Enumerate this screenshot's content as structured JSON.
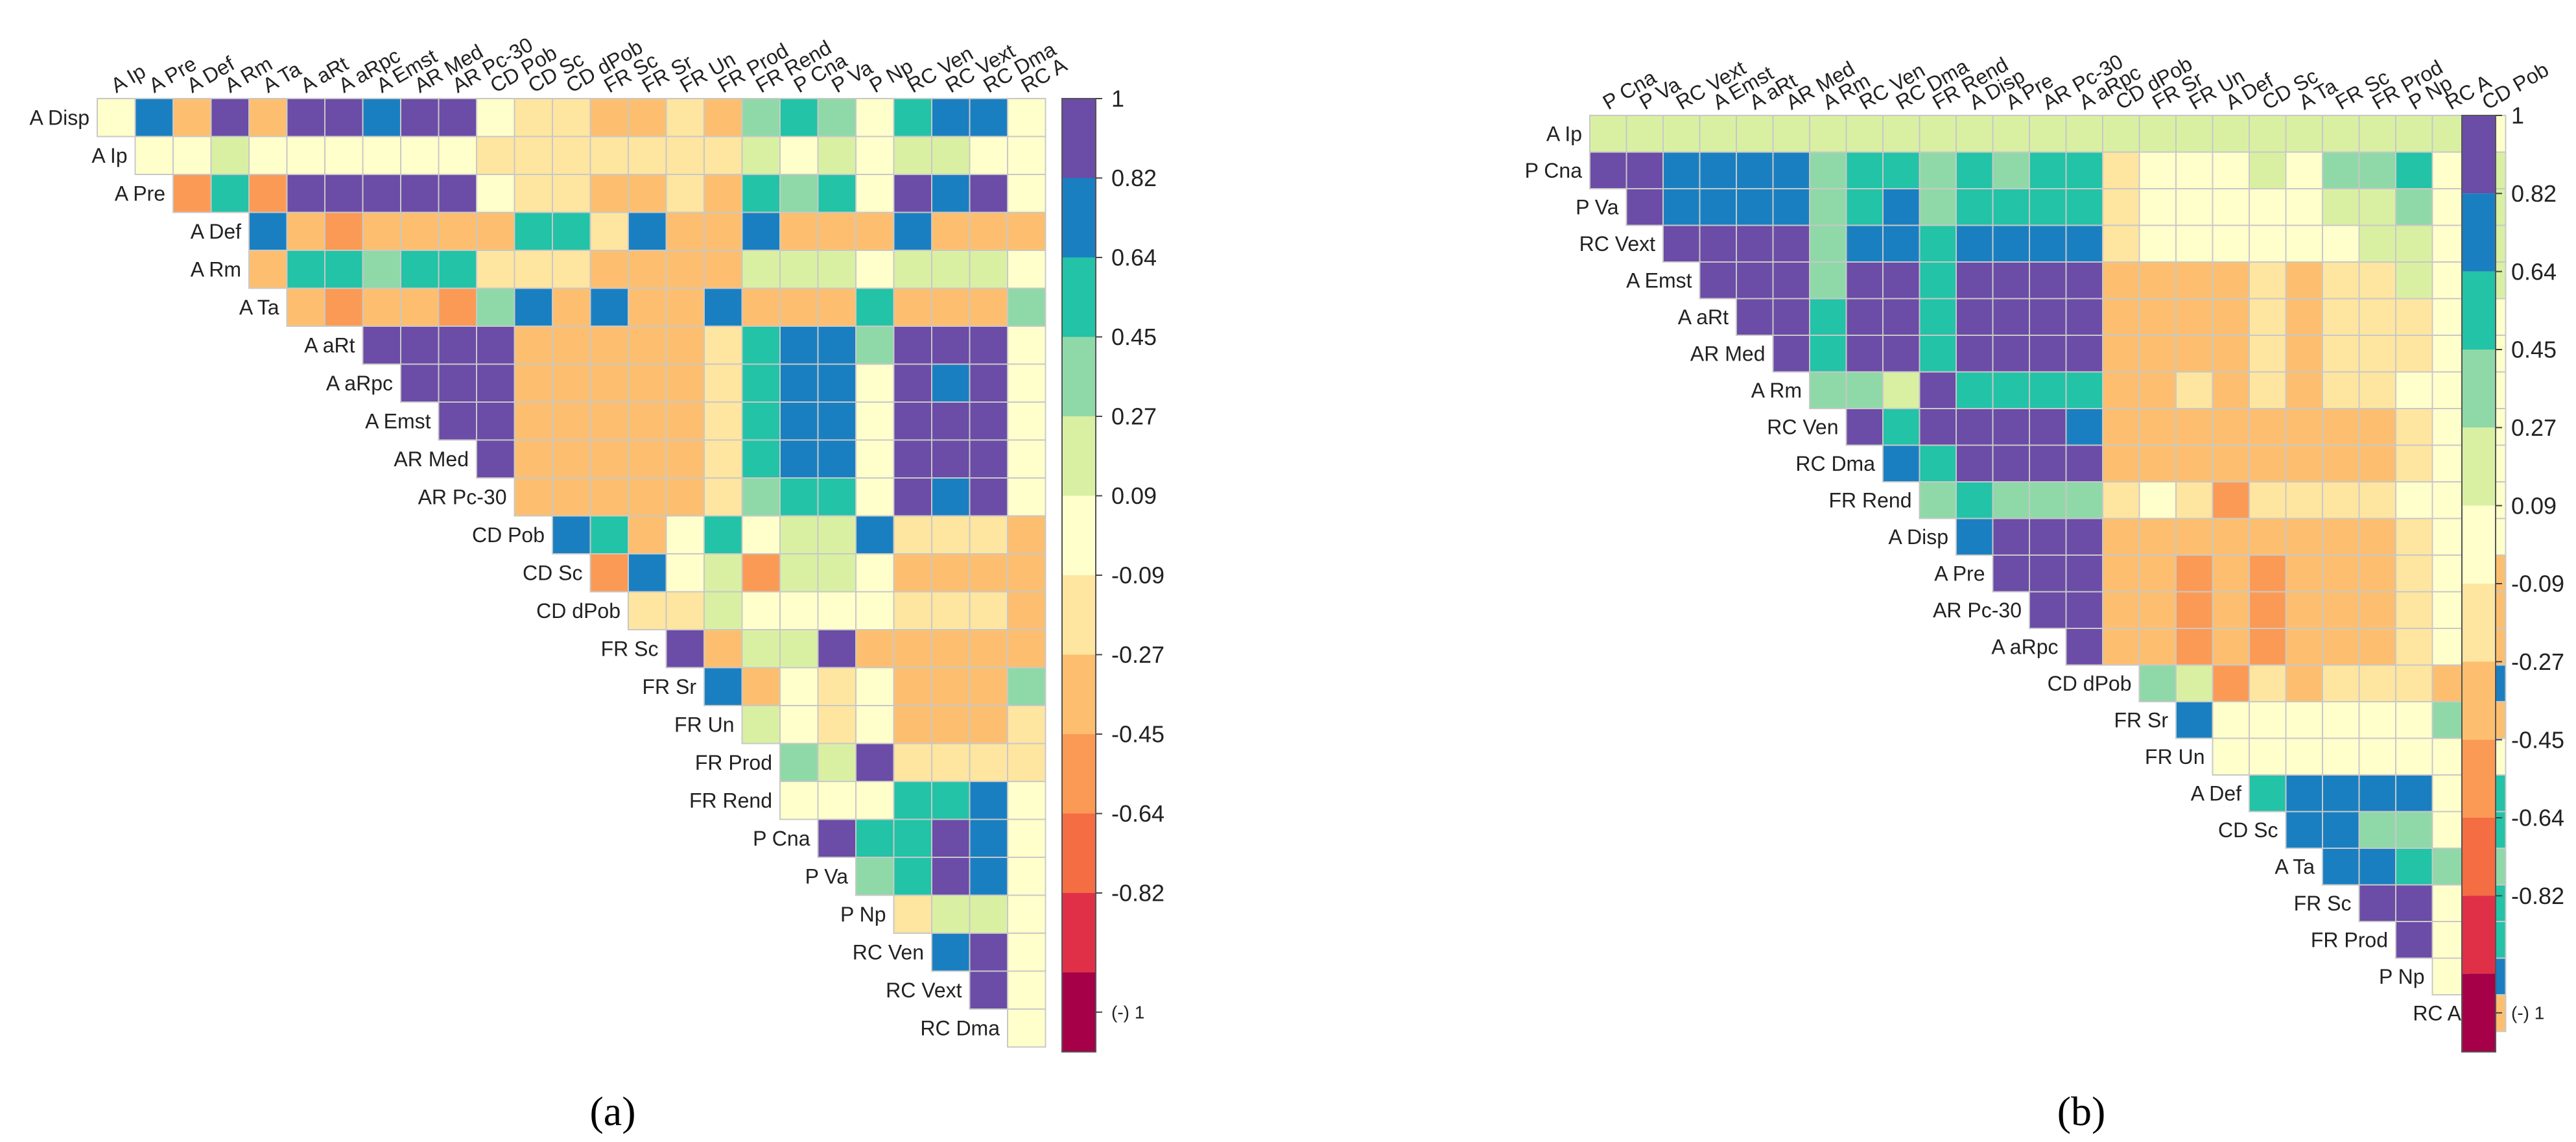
{
  "figure": {
    "caption_a": "(a)",
    "caption_b": "(b)"
  },
  "colorbar": {
    "ticks": [
      "1",
      "0.82",
      "0.64",
      "0.45",
      "0.27",
      "0.09",
      "-0.09",
      "-0.27",
      "-0.45",
      "-0.64",
      "-0.82",
      "(-) 1"
    ],
    "colors": [
      "#6b4ca6",
      "#1a7fc1",
      "#22c3a6",
      "#8fd9a8",
      "#d9f0a3",
      "#ffffcc",
      "#fee5a0",
      "#fdbf6f",
      "#fb9a55",
      "#f46d43",
      "#e03048",
      "#a50048"
    ]
  },
  "chart_data": [
    {
      "type": "heatmap",
      "panel": "a",
      "shape": "upper-triangular correlation matrix",
      "value_range": [
        -1,
        1
      ],
      "col_labels": [
        "A Ip",
        "A Pre",
        "A Def",
        "A Rm",
        "A Ta",
        "A aRt",
        "A aRpc",
        "A Emst",
        "AR Med",
        "AR Pc-30",
        "CD Pob",
        "CD Sc",
        "CD dPob",
        "FR Sc",
        "FR Sr",
        "FR Un",
        "FR Prod",
        "FR Rend",
        "P Cna",
        "P Va",
        "P Np",
        "RC Ven",
        "RC Vext",
        "RC Dma",
        "RC A"
      ],
      "row_labels": [
        "A Disp",
        "A Ip",
        "A Pre",
        "A Def",
        "A Rm",
        "A Ta",
        "A aRt",
        "A aRpc",
        "A Emst",
        "AR Med",
        "AR Pc-30",
        "CD Pob",
        "CD Sc",
        "CD dPob",
        "FR Sc",
        "FR Sr",
        "FR Un",
        "FR Prod",
        "FR Rend",
        "P Cna",
        "P Va",
        "P Np",
        "RC Ven",
        "RC Vext",
        "RC Dma"
      ],
      "rows": [
        [
          0.1,
          0.7,
          -0.3,
          0.9,
          -0.3,
          0.9,
          0.9,
          0.7,
          0.9,
          0.9,
          0.0,
          -0.1,
          -0.2,
          -0.3,
          -0.3,
          -0.2,
          -0.3,
          0.4,
          0.5,
          0.4,
          0.1,
          0.5,
          0.7,
          0.7,
          0.1
        ],
        [
          0.0,
          0.1,
          0.2,
          0.1,
          0.1,
          0.1,
          0.1,
          0.1,
          0.1,
          -0.1,
          -0.1,
          -0.1,
          -0.1,
          -0.1,
          -0.1,
          -0.1,
          0.2,
          0.1,
          0.2,
          0.1,
          0.2,
          0.2,
          0.1,
          0.0
        ],
        [
          -0.5,
          0.5,
          -0.5,
          0.9,
          0.9,
          0.9,
          0.9,
          0.9,
          0.0,
          -0.1,
          -0.1,
          -0.3,
          -0.3,
          -0.2,
          -0.3,
          0.5,
          0.4,
          0.5,
          0.1,
          0.9,
          0.7,
          0.9,
          0.0
        ],
        [
          0.7,
          -0.3,
          -0.5,
          -0.3,
          -0.3,
          -0.3,
          -0.3,
          0.5,
          0.5,
          -0.1,
          0.7,
          -0.3,
          -0.3,
          0.7,
          -0.3,
          -0.3,
          -0.3,
          0.7,
          -0.3,
          -0.3,
          -0.3
        ],
        [
          -0.3,
          0.5,
          0.5,
          0.4,
          0.5,
          0.5,
          -0.1,
          -0.1,
          -0.1,
          -0.3,
          -0.3,
          -0.3,
          -0.3,
          0.2,
          0.3,
          0.2,
          0.1,
          0.3,
          0.3,
          0.3,
          0.1
        ],
        [
          -0.3,
          -0.5,
          -0.3,
          -0.3,
          -0.5,
          0.4,
          0.7,
          -0.3,
          0.7,
          -0.3,
          -0.3,
          0.7,
          -0.3,
          -0.3,
          -0.3,
          0.5,
          -0.3,
          -0.3,
          -0.3,
          0.4
        ],
        [
          0.9,
          0.9,
          0.9,
          0.9,
          -0.3,
          -0.3,
          -0.3,
          -0.3,
          -0.3,
          -0.1,
          0.5,
          0.7,
          0.7,
          0.4,
          0.9,
          0.9,
          0.9,
          0.0
        ],
        [
          0.9,
          0.9,
          0.9,
          -0.3,
          -0.3,
          -0.3,
          -0.3,
          -0.3,
          -0.1,
          0.5,
          0.7,
          0.7,
          0.1,
          0.9,
          0.7,
          0.9,
          0.0
        ],
        [
          0.9,
          0.9,
          -0.3,
          -0.3,
          -0.3,
          -0.3,
          -0.3,
          -0.1,
          0.5,
          0.7,
          0.7,
          0.1,
          0.9,
          0.9,
          0.9,
          0.0
        ],
        [
          0.9,
          -0.3,
          -0.3,
          -0.3,
          -0.3,
          -0.3,
          -0.1,
          0.5,
          0.7,
          0.7,
          0.1,
          0.9,
          0.9,
          0.9,
          0.0
        ],
        [
          -0.3,
          -0.3,
          -0.3,
          -0.3,
          -0.3,
          -0.1,
          0.4,
          0.5,
          0.5,
          0.1,
          0.9,
          0.7,
          0.9,
          0.0
        ],
        [
          0.7,
          0.5,
          -0.3,
          0.1,
          0.5,
          0.1,
          0.2,
          0.2,
          0.7,
          -0.1,
          -0.1,
          -0.1,
          -0.3
        ],
        [
          -0.5,
          0.7,
          0.0,
          0.2,
          -0.5,
          0.2,
          0.2,
          0.1,
          -0.3,
          -0.3,
          -0.3,
          -0.3
        ],
        [
          -0.1,
          -0.1,
          0.2,
          0.1,
          0.1,
          0.1,
          0.1,
          -0.1,
          -0.1,
          -0.1,
          -0.3
        ],
        [
          0.9,
          -0.3,
          0.3,
          0.3,
          0.9,
          -0.3,
          -0.3,
          -0.3,
          -0.3,
          -0.3
        ],
        [
          0.7,
          -0.3,
          0.1,
          -0.1,
          0.1,
          -0.3,
          -0.3,
          -0.3,
          0.4
        ],
        [
          0.2,
          0.1,
          -0.1,
          0.1,
          -0.3,
          -0.3,
          -0.3,
          -0.1
        ],
        [
          0.4,
          0.2,
          0.9,
          -0.1,
          -0.1,
          -0.1,
          -0.1
        ],
        [
          0.1,
          0.1,
          0.1,
          0.5,
          0.5,
          0.7,
          0.1
        ],
        [
          0.9,
          0.5,
          0.5,
          0.9,
          0.7,
          0.1
        ],
        [
          0.4,
          0.5,
          0.9,
          0.7,
          0.1
        ],
        [
          -0.1,
          0.2,
          0.2,
          0.1
        ],
        [
          0.7,
          0.9,
          0.1
        ],
        [
          0.9,
          0.1
        ],
        [
          0.1
        ]
      ]
    },
    {
      "type": "heatmap",
      "panel": "b",
      "shape": "upper-triangular correlation matrix",
      "value_range": [
        -1,
        1
      ],
      "col_labels": [
        "P Cna",
        "P Va",
        "RC Vext",
        "A Emst",
        "A aRt",
        "AR Med",
        "A Rm",
        "RC Ven",
        "RC Dma",
        "FR Rend",
        "A Disp",
        "A Pre",
        "AR Pc-30",
        "A aRpc",
        "CD dPob",
        "FR Sr",
        "FR Un",
        "A Def",
        "CD Sc",
        "A Ta",
        "FR Sc",
        "FR Prod",
        "P Np",
        "RC A",
        "CD Pob"
      ],
      "row_labels": [
        "A Ip",
        "P Cna",
        "P Va",
        "RC Vext",
        "A Emst",
        "A aRt",
        "AR Med",
        "A Rm",
        "RC Ven",
        "RC Dma",
        "FR Rend",
        "A Disp",
        "A Pre",
        "AR Pc-30",
        "A aRpc",
        "CD dPob",
        "FR Sr",
        "FR Un",
        "A Def",
        "CD Sc",
        "A Ta",
        "FR Sc",
        "FR Prod",
        "P Np",
        "RC A"
      ],
      "rows": [
        [
          0.2,
          0.2,
          0.2,
          0.2,
          0.2,
          0.2,
          0.2,
          0.2,
          0.2,
          0.2,
          0.2,
          0.2,
          0.2,
          0.2,
          0.2,
          0.2,
          0.2,
          0.2,
          0.2,
          0.2,
          0.2,
          0.2,
          0.2,
          0.2,
          0.1
        ],
        [
          0.9,
          0.9,
          0.7,
          0.7,
          0.7,
          0.7,
          0.4,
          0.5,
          0.5,
          0.4,
          0.5,
          0.4,
          0.5,
          0.5,
          -0.1,
          0.1,
          0.1,
          0.1,
          0.2,
          0.1,
          0.4,
          0.4,
          0.5,
          0.1,
          0.2
        ],
        [
          0.9,
          0.7,
          0.7,
          0.7,
          0.7,
          0.4,
          0.5,
          0.7,
          0.4,
          0.5,
          0.5,
          0.5,
          0.5,
          -0.1,
          0.1,
          0.1,
          0.1,
          0.1,
          0.1,
          0.2,
          0.2,
          0.4,
          0.1,
          0.2
        ],
        [
          0.9,
          0.9,
          0.9,
          0.9,
          0.4,
          0.7,
          0.7,
          0.5,
          0.7,
          0.7,
          0.7,
          0.7,
          -0.1,
          0.1,
          0.1,
          0.1,
          0.1,
          0.1,
          0.1,
          0.2,
          0.2,
          0.1,
          0.2
        ],
        [
          0.9,
          0.9,
          0.9,
          0.4,
          0.9,
          0.9,
          0.5,
          0.9,
          0.9,
          0.9,
          0.9,
          -0.3,
          -0.3,
          -0.3,
          -0.3,
          -0.1,
          -0.3,
          -0.1,
          -0.1,
          0.2,
          0.1,
          0.2
        ],
        [
          0.9,
          0.9,
          0.5,
          0.9,
          0.9,
          0.5,
          0.9,
          0.9,
          0.9,
          0.9,
          -0.3,
          -0.3,
          -0.3,
          -0.3,
          -0.1,
          -0.3,
          -0.1,
          -0.1,
          -0.1,
          0.1,
          0.1
        ],
        [
          0.9,
          0.5,
          0.9,
          0.9,
          0.5,
          0.9,
          0.9,
          0.9,
          0.9,
          -0.3,
          -0.3,
          -0.3,
          -0.3,
          -0.1,
          -0.3,
          -0.1,
          -0.1,
          -0.1,
          0.1,
          0.1
        ],
        [
          0.4,
          0.4,
          0.2,
          0.9,
          0.5,
          0.5,
          0.5,
          0.5,
          -0.3,
          -0.3,
          -0.1,
          -0.3,
          -0.1,
          -0.3,
          -0.1,
          -0.1,
          0.1,
          0.1,
          0.1
        ],
        [
          0.9,
          0.5,
          0.9,
          0.9,
          0.9,
          0.9,
          0.7,
          -0.3,
          -0.3,
          -0.3,
          -0.3,
          -0.3,
          -0.3,
          -0.3,
          -0.3,
          -0.1,
          0.1,
          0.1
        ],
        [
          0.7,
          0.5,
          0.9,
          0.9,
          0.9,
          0.9,
          -0.3,
          -0.3,
          -0.3,
          -0.3,
          -0.3,
          -0.3,
          -0.3,
          -0.3,
          -0.1,
          0.1,
          0.1
        ],
        [
          0.4,
          0.5,
          0.4,
          0.4,
          0.4,
          -0.1,
          0.1,
          -0.1,
          -0.5,
          -0.1,
          -0.1,
          -0.1,
          -0.1,
          0.1,
          0.1,
          0.1
        ],
        [
          0.7,
          0.9,
          0.9,
          0.9,
          -0.3,
          -0.3,
          -0.3,
          -0.3,
          -0.3,
          -0.3,
          -0.3,
          -0.3,
          -0.1,
          0.1,
          0.1
        ],
        [
          0.9,
          0.9,
          0.9,
          -0.3,
          -0.3,
          -0.5,
          -0.3,
          -0.5,
          -0.3,
          -0.3,
          -0.3,
          -0.1,
          0.1,
          -0.3
        ],
        [
          0.9,
          0.9,
          -0.3,
          -0.3,
          -0.5,
          -0.3,
          -0.5,
          -0.3,
          -0.3,
          -0.3,
          -0.1,
          0.1,
          -0.3
        ],
        [
          0.9,
          -0.3,
          -0.3,
          -0.5,
          -0.3,
          -0.5,
          -0.3,
          -0.3,
          -0.3,
          -0.1,
          0.1,
          -0.3
        ],
        [
          0.4,
          0.2,
          -0.5,
          -0.1,
          -0.3,
          -0.1,
          -0.1,
          -0.1,
          -0.3,
          0.7
        ],
        [
          0.7,
          0.1,
          0.1,
          0.1,
          0.1,
          0.1,
          0.1,
          0.4,
          -0.3
        ],
        [
          0.1,
          0.1,
          0.1,
          0.1,
          0.1,
          0.1,
          0.1,
          0.1
        ],
        [
          0.5,
          0.7,
          0.7,
          0.7,
          0.7,
          0.1,
          0.5
        ],
        [
          0.7,
          0.7,
          0.4,
          0.4,
          0.1,
          0.5
        ],
        [
          0.7,
          0.7,
          0.5,
          0.4,
          0.4
        ],
        [
          0.9,
          0.9,
          0.1,
          0.5
        ],
        [
          0.9,
          0.1,
          0.5
        ],
        [
          0.1,
          0.7
        ],
        [
          -0.3
        ]
      ]
    }
  ]
}
